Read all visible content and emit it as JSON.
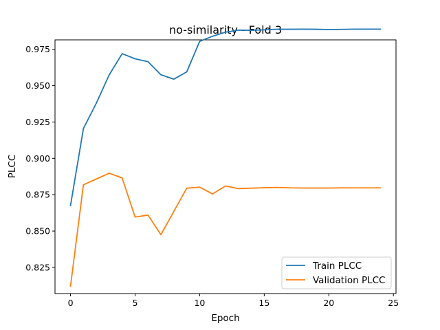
{
  "chart_data": {
    "type": "line",
    "title": "no-similarity - Fold 3",
    "xlabel": "Epoch",
    "ylabel": "PLCC",
    "xlim": [
      -1.2,
      25.2
    ],
    "ylim": [
      0.807,
      0.9815
    ],
    "xticks": [
      0,
      5,
      10,
      15,
      20,
      25
    ],
    "xtick_labels": [
      "0",
      "5",
      "10",
      "15",
      "20",
      "25"
    ],
    "yticks": [
      0.825,
      0.85,
      0.875,
      0.9,
      0.925,
      0.95,
      0.975
    ],
    "ytick_labels": [
      "0.825",
      "0.850",
      "0.875",
      "0.900",
      "0.925",
      "0.950",
      "0.975"
    ],
    "grid": false,
    "legend_position": "lower-right",
    "x": [
      0,
      1,
      2,
      3,
      4,
      5,
      6,
      7,
      8,
      9,
      10,
      11,
      12,
      13,
      14,
      15,
      16,
      17,
      18,
      19,
      20,
      21,
      22,
      23,
      24
    ],
    "series": [
      {
        "name": "Train PLCC",
        "color": "#1f77b4",
        "values": [
          0.8675,
          0.9205,
          0.938,
          0.9575,
          0.972,
          0.9685,
          0.9665,
          0.9575,
          0.9545,
          0.9595,
          0.9805,
          0.984,
          0.9868,
          0.9882,
          0.9881,
          0.9884,
          0.9888,
          0.9888,
          0.9889,
          0.9888,
          0.9886,
          0.9887,
          0.9889,
          0.9889,
          0.9889
        ]
      },
      {
        "name": "Validation PLCC",
        "color": "#ff7f0e",
        "values": [
          0.812,
          0.8818,
          0.8858,
          0.8898,
          0.8865,
          0.8596,
          0.861,
          0.8475,
          0.8635,
          0.8795,
          0.8802,
          0.8755,
          0.881,
          0.8792,
          0.8795,
          0.8798,
          0.88,
          0.8797,
          0.8796,
          0.8796,
          0.8796,
          0.8797,
          0.8797,
          0.8797,
          0.8797
        ]
      }
    ]
  }
}
